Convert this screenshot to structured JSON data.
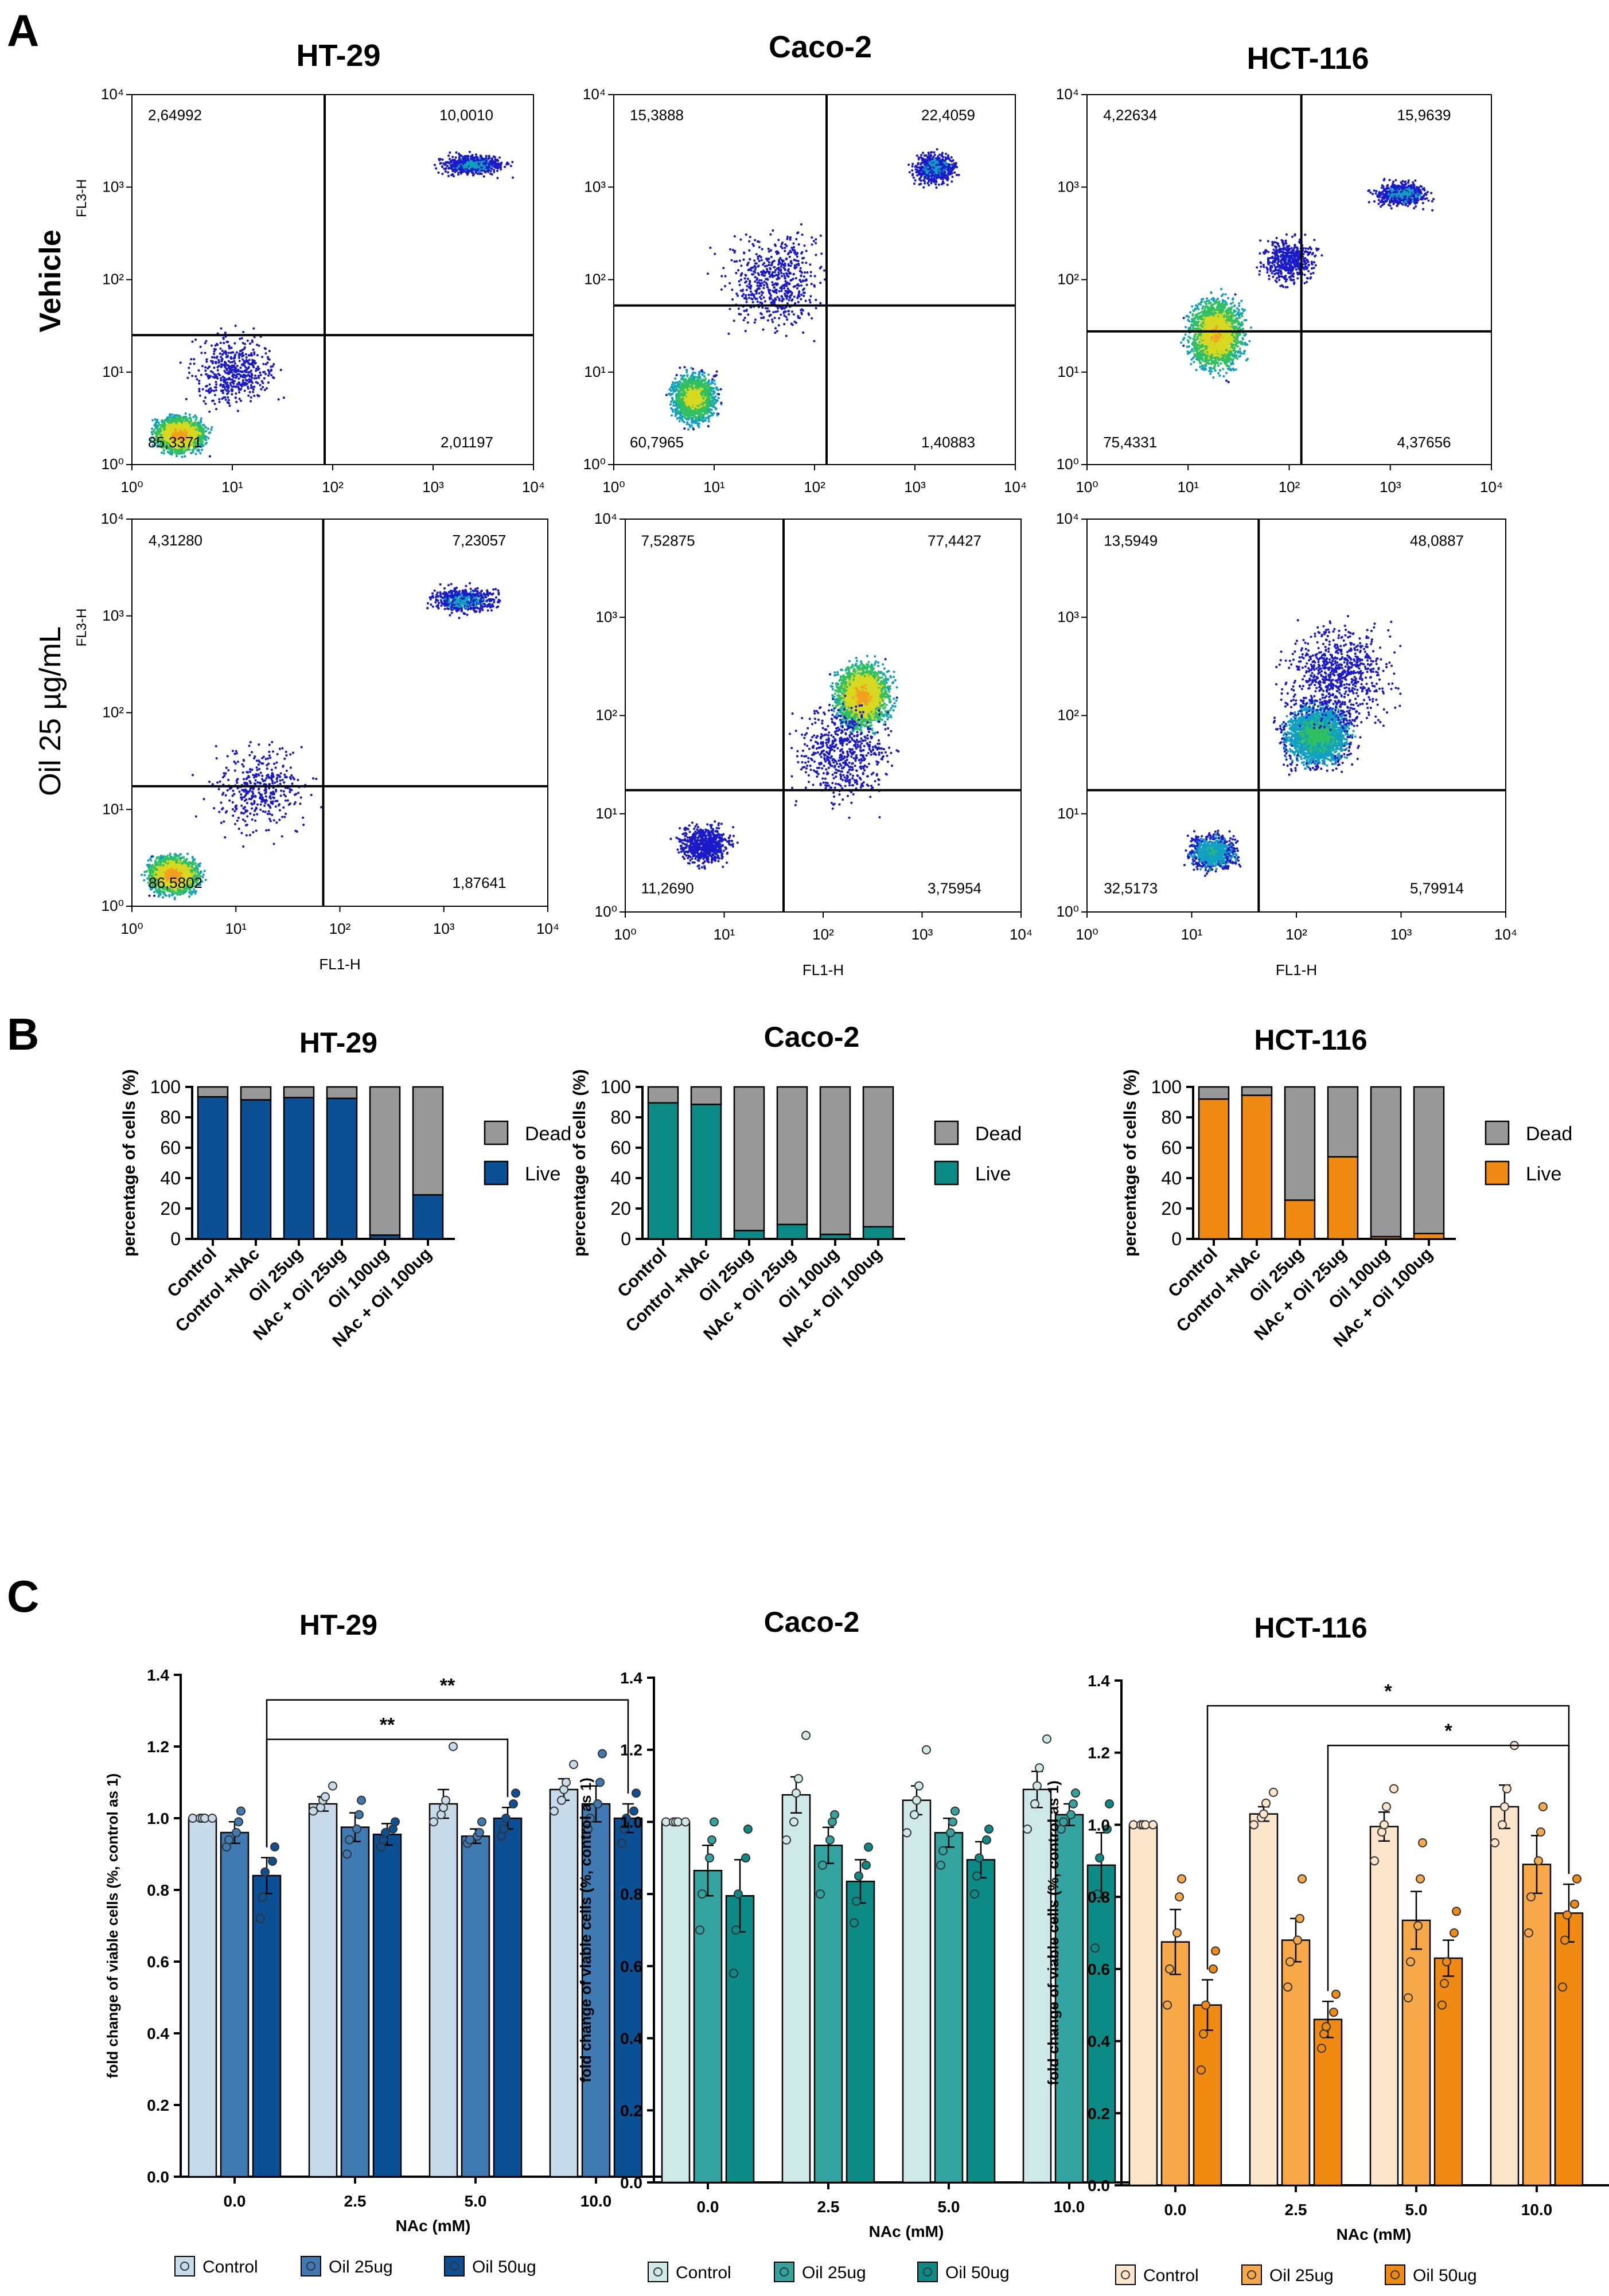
{
  "figure": {
    "panel_labels": [
      "A",
      "B",
      "C"
    ],
    "colors": {
      "ht29": {
        "light": "#c7dbeb",
        "mid": "#3f7ab3",
        "dark": "#0b4f94"
      },
      "caco2": {
        "light": "#cfe9e8",
        "mid": "#33a3a0",
        "dark": "#0b8a86"
      },
      "hct116": {
        "light": "#fbe6cc",
        "mid": "#f7a94a",
        "dark": "#f18a12"
      },
      "dead": "#999999",
      "ht29_live": "#0b4f94",
      "caco2_live": "#0b8a86",
      "hct116_live": "#f18a12"
    }
  },
  "panel_a": {
    "cell_lines": [
      "HT-29",
      "Caco-2",
      "HCT-116"
    ],
    "row_labels": [
      "Vehicle",
      "Oil 25 µg/mL"
    ],
    "y_axis_label": "FL3-H",
    "x_axis_label": "FL1-H",
    "tick_labels": [
      "10⁰",
      "10¹",
      "10²",
      "10³",
      "10⁴"
    ],
    "plots": [
      {
        "row": "Vehicle",
        "cell_line": "HT-29",
        "ul": "2,64992",
        "ur": "10,0010",
        "ll": "85,3371",
        "lr": "2,01197"
      },
      {
        "row": "Vehicle",
        "cell_line": "Caco-2",
        "ul": "15,3888",
        "ur": "22,4059",
        "ll": "60,7965",
        "lr": "1,40883"
      },
      {
        "row": "Vehicle",
        "cell_line": "HCT-116",
        "ul": "4,22634",
        "ur": "15,9639",
        "ll": "75,4331",
        "lr": "4,37656"
      },
      {
        "row": "Oil 25 µg/mL",
        "cell_line": "HT-29",
        "ul": "4,31280",
        "ur": "7,23057",
        "ll": "86,5802",
        "lr": "1,87641"
      },
      {
        "row": "Oil 25 µg/mL",
        "cell_line": "Caco-2",
        "ul": "7,52875",
        "ur": "77,4427",
        "ll": "11,2690",
        "lr": "3,75954"
      },
      {
        "row": "Oil 25 µg/mL",
        "cell_line": "HCT-116",
        "ul": "13,5949",
        "ur": "48,0887",
        "ll": "32,5173",
        "lr": "5,79914"
      }
    ]
  },
  "chart_data": [
    {
      "type": "bar",
      "panel": "B",
      "title": "HT-29",
      "stacked": true,
      "ylabel": "percentage of cells (%)",
      "ylim": [
        0,
        100
      ],
      "yticks": [
        "0",
        "20",
        "40",
        "60",
        "80",
        "100"
      ],
      "categories": [
        "Control",
        "Control +NAc",
        "Oil 25ug",
        "NAc + Oil 25ug",
        "Oil 100ug",
        "NAc + Oil 100ug"
      ],
      "series": [
        {
          "name": "Live",
          "values": [
            93.5,
            91.5,
            93,
            92.5,
            2.5,
            29
          ]
        },
        {
          "name": "Dead",
          "values": [
            6.5,
            8.5,
            7,
            7.5,
            97.5,
            71
          ]
        }
      ],
      "legend": [
        "Dead",
        "Live"
      ]
    },
    {
      "type": "bar",
      "panel": "B",
      "title": "Caco-2",
      "stacked": true,
      "ylabel": "percentage of cells (%)",
      "ylim": [
        0,
        100
      ],
      "yticks": [
        "0",
        "20",
        "40",
        "60",
        "80",
        "100"
      ],
      "categories": [
        "Control",
        "Control +NAc",
        "Oil 25ug",
        "NAc + Oil 25ug",
        "Oil 100ug",
        "NAc + Oil 100ug"
      ],
      "series": [
        {
          "name": "Live",
          "values": [
            89.5,
            88.5,
            5.5,
            9.5,
            3,
            8
          ]
        },
        {
          "name": "Dead",
          "values": [
            10.5,
            11.5,
            94.5,
            90.5,
            97,
            92
          ]
        }
      ],
      "legend": [
        "Dead",
        "Live"
      ]
    },
    {
      "type": "bar",
      "panel": "B",
      "title": "HCT-116",
      "stacked": true,
      "ylabel": "percentage of cells (%)",
      "ylim": [
        0,
        100
      ],
      "yticks": [
        "0",
        "20",
        "40",
        "60",
        "80",
        "100"
      ],
      "categories": [
        "Control",
        "Control +NAc",
        "Oil 25ug",
        "NAc + Oil 25ug",
        "Oil 100ug",
        "NAc + Oil 100ug"
      ],
      "series": [
        {
          "name": "Live",
          "values": [
            92,
            94.5,
            25.5,
            54,
            1.5,
            3.5
          ]
        },
        {
          "name": "Dead",
          "values": [
            8,
            5.5,
            74.5,
            46,
            98.5,
            96.5
          ]
        }
      ],
      "legend": [
        "Dead",
        "Live"
      ]
    },
    {
      "type": "bar",
      "panel": "C",
      "title": "HT-29",
      "ylabel": "fold change of viable cells (%, control as 1)",
      "xlabel": "NAc (mM)",
      "ylim": [
        0,
        1.4
      ],
      "yticks": [
        "0.0",
        "0.2",
        "0.4",
        "0.6",
        "0.8",
        "1.0",
        "1.2",
        "1.4"
      ],
      "categories": [
        "0.0",
        "2.5",
        "5.0",
        "10.0"
      ],
      "series": [
        {
          "name": "Control",
          "values": [
            1.0,
            1.04,
            1.04,
            1.08
          ],
          "errors": [
            0.0,
            0.02,
            0.04,
            0.03
          ]
        },
        {
          "name": "Oil 25ug",
          "values": [
            0.96,
            0.975,
            0.95,
            1.04
          ],
          "errors": [
            0.03,
            0.04,
            0.02,
            0.05
          ]
        },
        {
          "name": "Oil 50ug",
          "values": [
            0.84,
            0.955,
            1.0,
            1.0
          ],
          "errors": [
            0.05,
            0.03,
            0.03,
            0.04
          ]
        }
      ],
      "points": [
        [
          [
            1.0,
            1.0,
            1.0,
            1.0,
            1.0
          ],
          [
            0.92,
            0.94,
            0.96,
            0.99,
            1.02
          ],
          [
            0.72,
            0.78,
            0.85,
            0.88,
            0.92
          ]
        ],
        [
          [
            1.02,
            1.03,
            1.05,
            1.06,
            1.09
          ],
          [
            0.9,
            0.94,
            0.97,
            1.01,
            1.05
          ],
          [
            0.92,
            0.94,
            0.96,
            0.97,
            0.99
          ]
        ],
        [
          [
            0.99,
            1.01,
            1.03,
            1.05,
            1.2
          ],
          [
            0.93,
            0.94,
            0.95,
            0.96,
            0.99
          ],
          [
            0.95,
            0.97,
            1.0,
            1.04,
            1.07
          ]
        ],
        [
          [
            1.02,
            1.05,
            1.08,
            1.1,
            1.15
          ],
          [
            0.97,
            1.0,
            1.04,
            1.1,
            1.18
          ],
          [
            0.93,
            0.97,
            1.0,
            1.02,
            1.07
          ]
        ]
      ],
      "significance": [
        {
          "from": "0.0 Oil 50ug",
          "to": "10.0 Oil 50ug",
          "label": "**"
        },
        {
          "from": "0.0 Oil 50ug",
          "to": "5.0 Oil 50ug",
          "label": "**"
        }
      ],
      "legend": [
        "Control",
        "Oil 25ug",
        "Oil 50ug"
      ]
    },
    {
      "type": "bar",
      "panel": "C",
      "title": "Caco-2",
      "ylabel": "fold change of viable cells (%, control as 1)",
      "xlabel": "NAc (mM)",
      "ylim": [
        0,
        1.4
      ],
      "yticks": [
        "0.0",
        "0.2",
        "0.4",
        "0.6",
        "0.8",
        "1.0",
        "1.2",
        "1.4"
      ],
      "categories": [
        "0.0",
        "2.5",
        "5.0",
        "10.0"
      ],
      "series": [
        {
          "name": "Control",
          "values": [
            1.0,
            1.075,
            1.06,
            1.09
          ],
          "errors": [
            0.0,
            0.05,
            0.04,
            0.05
          ]
        },
        {
          "name": "Oil 25ug",
          "values": [
            0.865,
            0.935,
            0.97,
            1.02
          ],
          "errors": [
            0.07,
            0.05,
            0.04,
            0.03
          ]
        },
        {
          "name": "Oil 50ug",
          "values": [
            0.795,
            0.835,
            0.895,
            0.88
          ],
          "errors": [
            0.1,
            0.06,
            0.05,
            0.09
          ]
        }
      ],
      "points": [
        [
          [
            1.0,
            1.0,
            1.0,
            1.0,
            1.0
          ],
          [
            0.7,
            0.8,
            0.9,
            0.95,
            1.0
          ],
          [
            0.58,
            0.7,
            0.8,
            0.9,
            0.98
          ]
        ],
        [
          [
            0.95,
            1.0,
            1.08,
            1.12,
            1.24
          ],
          [
            0.8,
            0.88,
            0.95,
            1.0,
            1.02
          ],
          [
            0.72,
            0.78,
            0.85,
            0.88,
            0.93
          ]
        ],
        [
          [
            0.97,
            1.02,
            1.06,
            1.1,
            1.2
          ],
          [
            0.88,
            0.92,
            0.97,
            1.0,
            1.03
          ],
          [
            0.8,
            0.85,
            0.9,
            0.95,
            0.98
          ]
        ],
        [
          [
            0.98,
            1.05,
            1.1,
            1.15,
            1.23
          ],
          [
            0.98,
            1.0,
            1.02,
            1.05,
            1.08
          ],
          [
            0.65,
            0.8,
            0.9,
            0.98,
            1.05
          ]
        ]
      ],
      "significance": [],
      "legend": [
        "Control",
        "Oil 25ug",
        "Oil 50ug"
      ]
    },
    {
      "type": "bar",
      "panel": "C",
      "title": "HCT-116",
      "ylabel": "fold change of viable cells (%, control as 1)",
      "xlabel": "NAc (mM)",
      "ylim": [
        0,
        1.4
      ],
      "yticks": [
        "0.0",
        "0.2",
        "0.4",
        "0.6",
        "0.8",
        "1.0",
        "1.2",
        "1.4"
      ],
      "categories": [
        "0.0",
        "2.5",
        "5.0",
        "10.0"
      ],
      "series": [
        {
          "name": "Control",
          "values": [
            1.0,
            1.03,
            0.995,
            1.05
          ],
          "errors": [
            0.0,
            0.02,
            0.04,
            0.06
          ]
        },
        {
          "name": "Oil 25ug",
          "values": [
            0.675,
            0.68,
            0.735,
            0.89
          ],
          "errors": [
            0.09,
            0.06,
            0.08,
            0.08
          ]
        },
        {
          "name": "Oil 50ug",
          "values": [
            0.5,
            0.46,
            0.63,
            0.755
          ],
          "errors": [
            0.07,
            0.05,
            0.05,
            0.08
          ]
        }
      ],
      "points": [
        [
          [
            1.0,
            1.0,
            1.0,
            1.0,
            1.0
          ],
          [
            0.5,
            0.6,
            0.7,
            0.8,
            0.85
          ],
          [
            0.32,
            0.42,
            0.5,
            0.6,
            0.65
          ]
        ],
        [
          [
            1.0,
            1.02,
            1.03,
            1.06,
            1.09
          ],
          [
            0.55,
            0.62,
            0.68,
            0.74,
            0.85
          ],
          [
            0.38,
            0.42,
            0.44,
            0.48,
            0.53
          ]
        ],
        [
          [
            0.9,
            0.98,
            1.0,
            1.05,
            1.1
          ],
          [
            0.52,
            0.62,
            0.72,
            0.85,
            0.95
          ],
          [
            0.5,
            0.56,
            0.62,
            0.7,
            0.76
          ]
        ],
        [
          [
            0.95,
            1.0,
            1.05,
            1.1,
            1.22
          ],
          [
            0.7,
            0.8,
            0.9,
            0.98,
            1.05
          ],
          [
            0.55,
            0.68,
            0.75,
            0.78,
            0.85
          ]
        ]
      ],
      "significance": [
        {
          "from": "0.0 Oil 50ug",
          "to": "10.0 Oil 50ug",
          "label": "*"
        },
        {
          "from": "2.5 Oil 50ug",
          "to": "10.0 Oil 50ug",
          "label": "*"
        }
      ],
      "legend": [
        "Control",
        "Oil 25ug",
        "Oil 50ug"
      ]
    }
  ]
}
